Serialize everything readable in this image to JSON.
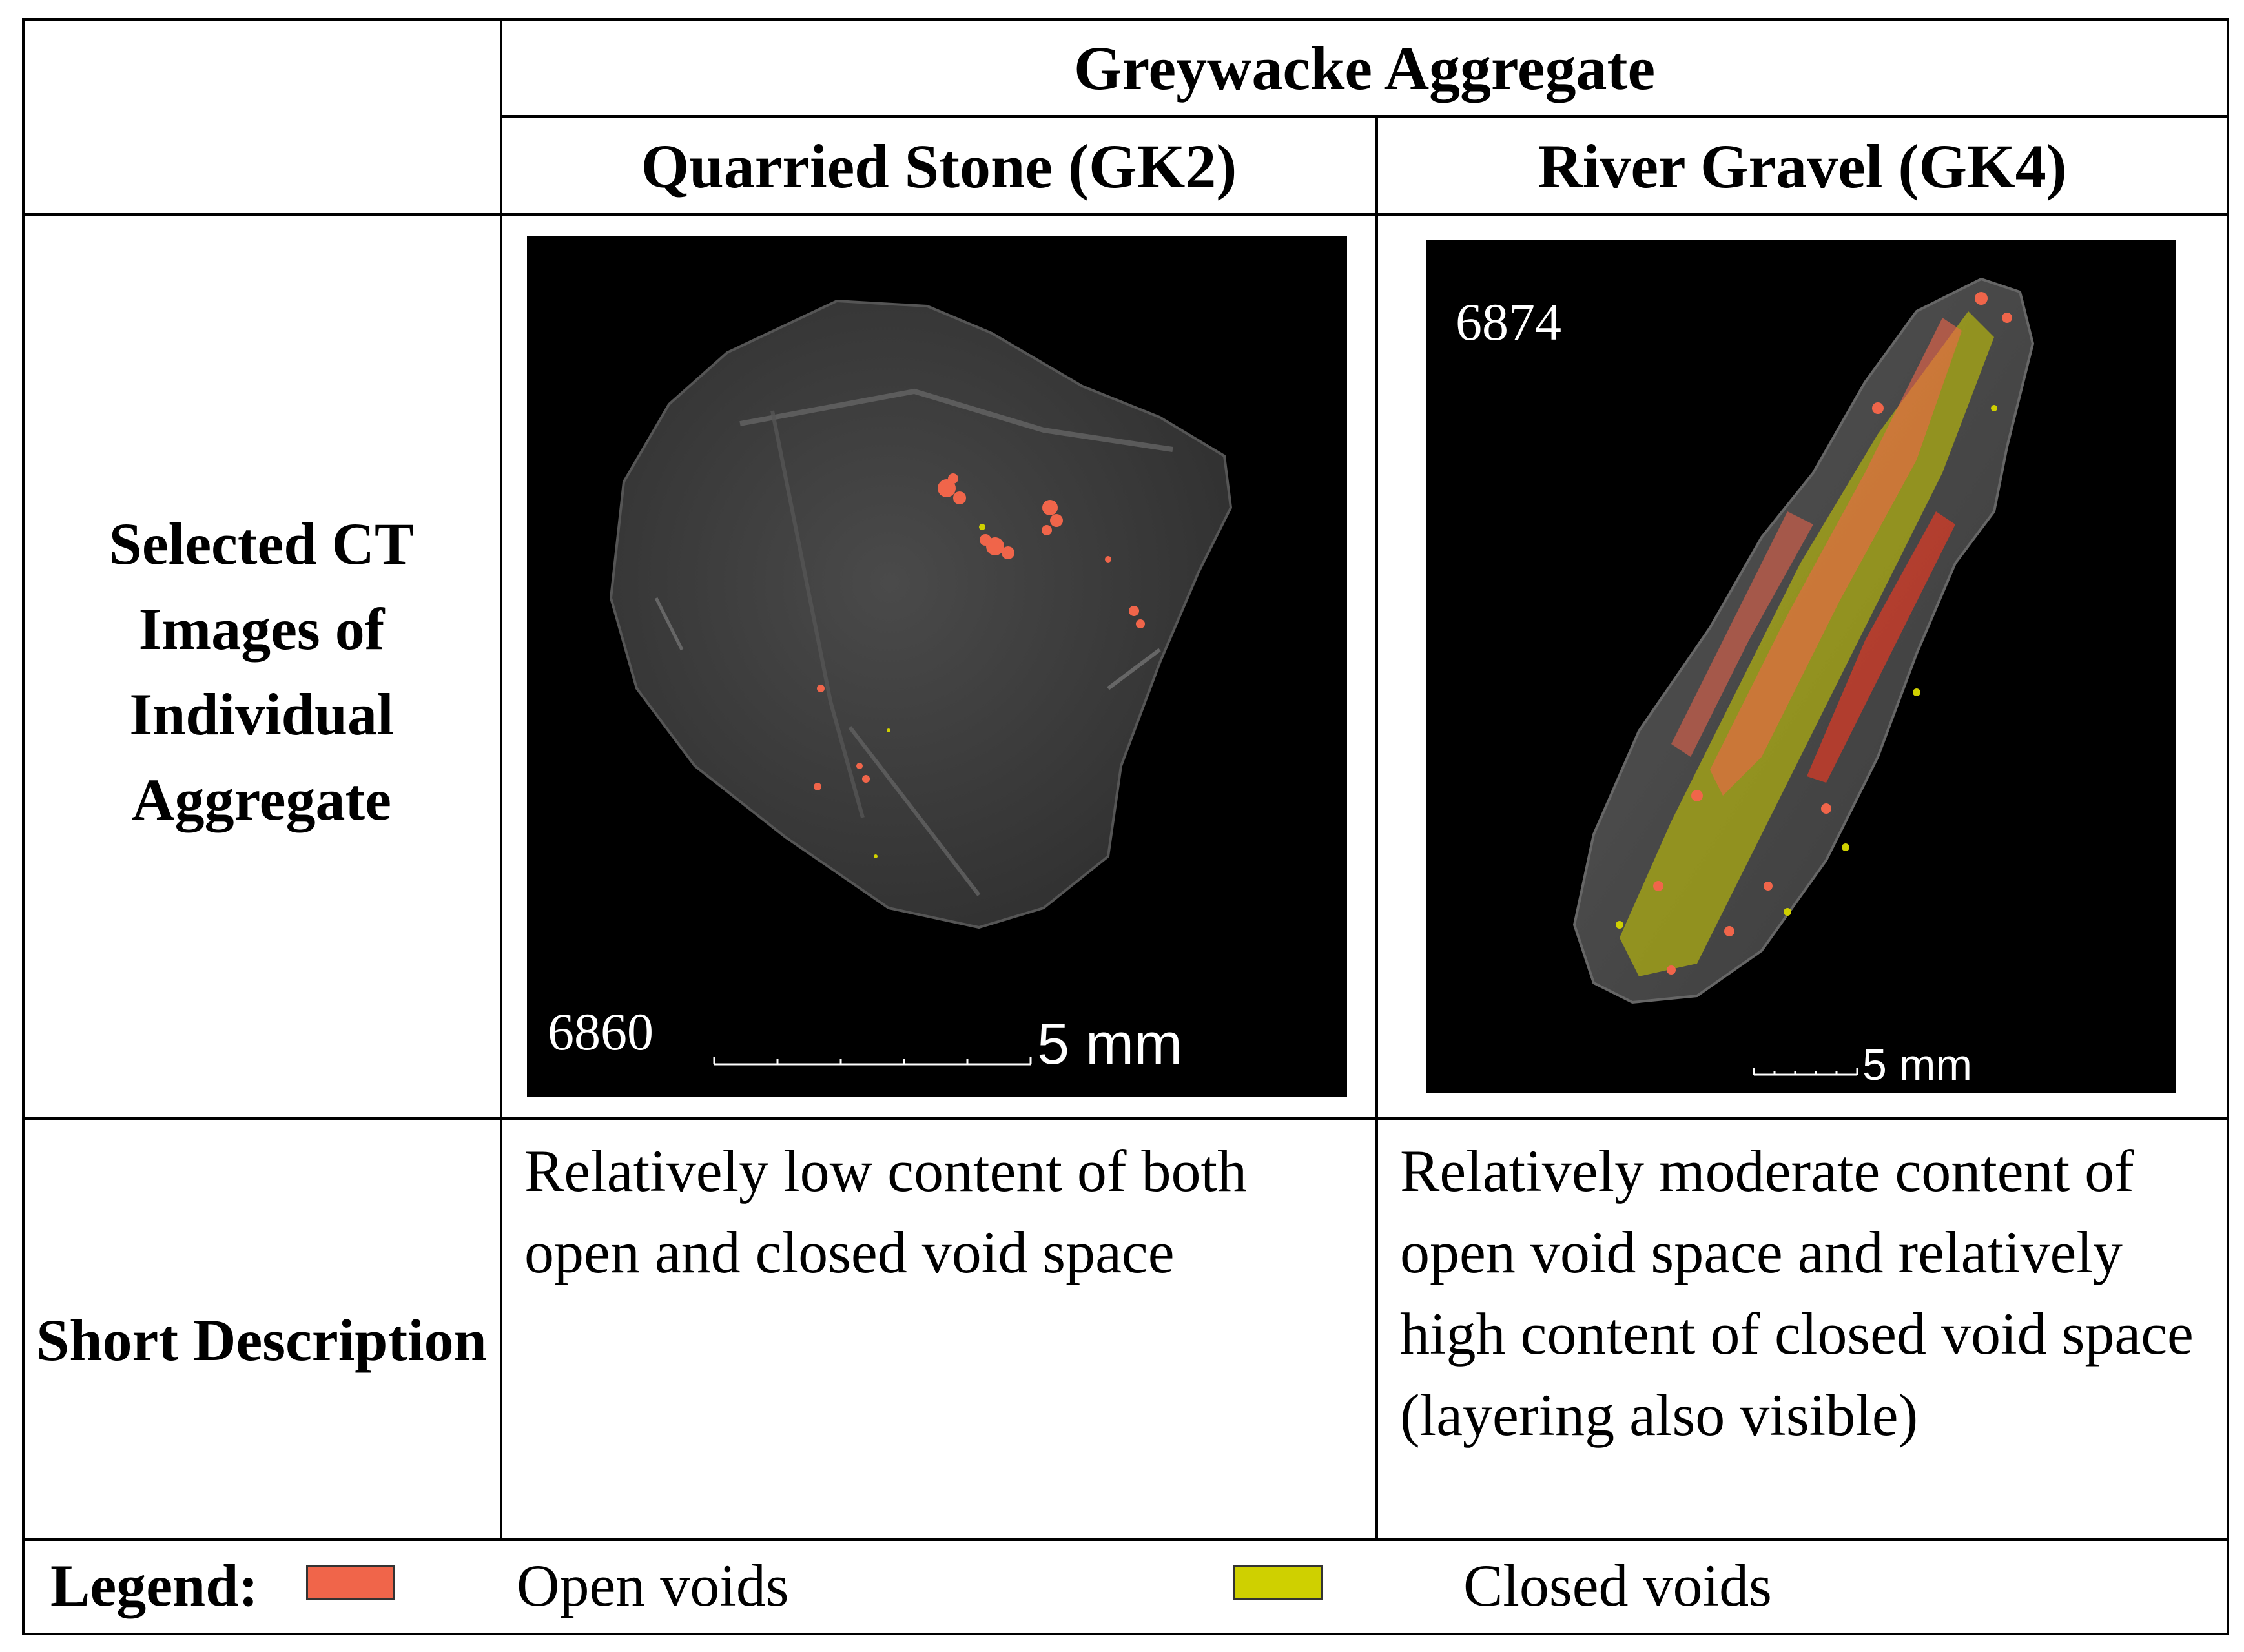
{
  "table": {
    "header_group": "Greywacke Aggregate",
    "columns": [
      {
        "label": "Quarried Stone (GK2)"
      },
      {
        "label": "River Gravel (GK4)"
      }
    ],
    "rows": [
      {
        "label": "Selected CT Images of Individual Aggregate"
      },
      {
        "label": "Short Description"
      }
    ],
    "images": [
      {
        "id_label": "6860",
        "scale_label": "5 mm",
        "description": "CT render of angular quarried stone with few red open voids"
      },
      {
        "id_label": "6874",
        "scale_label": "5 mm",
        "description": "CT render of elongated river gravel with red open and yellow closed voids in layers"
      }
    ],
    "descriptions": [
      "Relatively low content of both open and closed void space",
      "Relatively moderate content of open void space and relatively high content of closed void space (layering also visible)"
    ]
  },
  "legend": {
    "title": "Legend:",
    "items": [
      {
        "label": "Open voids",
        "color": "#f0654a"
      },
      {
        "label": "Closed voids",
        "color": "#cfd000"
      }
    ]
  },
  "colors": {
    "open_voids": "#f0654a",
    "closed_voids": "#cfd000",
    "rock": "#3a3a3a"
  }
}
